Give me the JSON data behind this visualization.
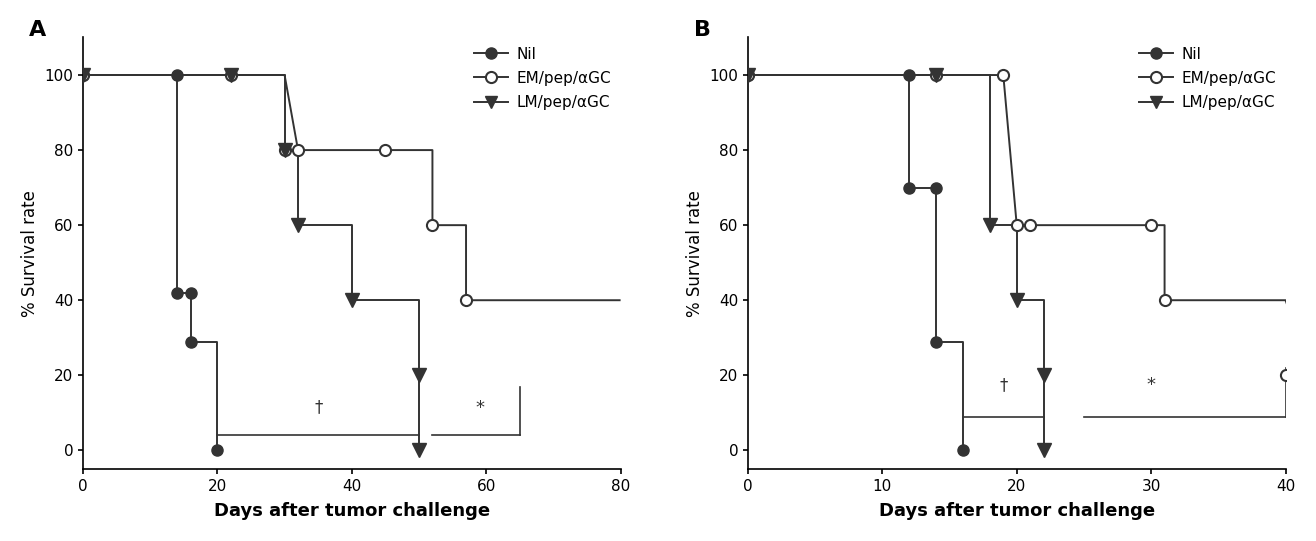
{
  "panel_A": {
    "nil_line": [
      0,
      14,
      14,
      16,
      16,
      20,
      20
    ],
    "nil_y": [
      100,
      100,
      42,
      42,
      29,
      29,
      0
    ],
    "nil_markers": [
      [
        0,
        100
      ],
      [
        14,
        100
      ],
      [
        14,
        42
      ],
      [
        16,
        42
      ],
      [
        16,
        29
      ],
      [
        20,
        0
      ]
    ],
    "em_line": [
      0,
      22,
      22,
      30,
      32,
      45,
      45,
      52,
      52,
      57,
      57,
      80
    ],
    "em_y": [
      100,
      100,
      100,
      100,
      80,
      80,
      80,
      80,
      60,
      60,
      40,
      40
    ],
    "em_markers": [
      [
        0,
        100
      ],
      [
        22,
        100
      ],
      [
        30,
        80
      ],
      [
        32,
        80
      ],
      [
        45,
        80
      ],
      [
        52,
        60
      ],
      [
        57,
        40
      ]
    ],
    "lm_line": [
      0,
      22,
      22,
      30,
      30,
      32,
      32,
      40,
      40,
      50,
      50
    ],
    "lm_y": [
      100,
      100,
      100,
      100,
      80,
      80,
      60,
      60,
      40,
      40,
      20
    ],
    "lm_drop_x": 50,
    "lm_markers": [
      [
        0,
        100
      ],
      [
        22,
        100
      ],
      [
        30,
        80
      ],
      [
        32,
        60
      ],
      [
        40,
        40
      ],
      [
        50,
        20
      ],
      [
        50,
        0
      ]
    ],
    "xlim": [
      0,
      80
    ],
    "xticks": [
      0,
      20,
      40,
      60,
      80
    ],
    "dagger_x": 35,
    "dagger_y": 9,
    "bracket1_x1": 20,
    "bracket1_x2": 50,
    "bracket1_y": 4,
    "star_x": 59,
    "star_y": 9,
    "bracket2_x1": 52,
    "bracket2_x2": 65,
    "bracket2_y": 4,
    "bracket2_top": 17,
    "label": "A"
  },
  "panel_B": {
    "nil_line": [
      0,
      12,
      12,
      14,
      14,
      16,
      16
    ],
    "nil_y": [
      100,
      100,
      70,
      70,
      29,
      29,
      0
    ],
    "nil_markers": [
      [
        0,
        100
      ],
      [
        12,
        100
      ],
      [
        12,
        70
      ],
      [
        14,
        70
      ],
      [
        14,
        29
      ],
      [
        16,
        0
      ]
    ],
    "em_line": [
      0,
      14,
      14,
      19,
      19,
      20,
      21,
      21,
      30,
      30,
      31,
      31,
      40,
      42
    ],
    "em_y": [
      100,
      100,
      100,
      100,
      100,
      60,
      60,
      60,
      60,
      60,
      60,
      40,
      40,
      20
    ],
    "em_markers": [
      [
        0,
        100
      ],
      [
        14,
        100
      ],
      [
        19,
        100
      ],
      [
        20,
        60
      ],
      [
        21,
        60
      ],
      [
        30,
        60
      ],
      [
        31,
        40
      ],
      [
        40,
        20
      ]
    ],
    "em_tail_x": 42,
    "em_tail_y": 20,
    "lm_line": [
      0,
      14,
      14,
      18,
      18,
      20,
      20,
      22,
      22
    ],
    "lm_y": [
      100,
      100,
      100,
      100,
      60,
      60,
      40,
      40,
      20
    ],
    "lm_drop_x": 22,
    "lm_markers": [
      [
        0,
        100
      ],
      [
        14,
        100
      ],
      [
        18,
        60
      ],
      [
        20,
        40
      ],
      [
        22,
        20
      ],
      [
        22,
        0
      ]
    ],
    "xlim": [
      0,
      40
    ],
    "xticks": [
      0,
      10,
      20,
      30,
      40
    ],
    "dagger_x": 19,
    "dagger_y": 15,
    "bracket1_x1": 16,
    "bracket1_x2": 22,
    "bracket1_y": 9,
    "star_x": 30,
    "star_y": 15,
    "bracket2_x1": 25,
    "bracket2_x2": 40,
    "bracket2_y": 9,
    "bracket2_top": 22,
    "label": "B"
  },
  "legend_labels": [
    "Nil",
    "EM/pep/αGC",
    "LM/pep/αGC"
  ],
  "ylabel": "% Survival rate",
  "xlabel": "Days after tumor challenge",
  "ylim": [
    -5,
    110
  ],
  "yticks": [
    0,
    20,
    40,
    60,
    80,
    100
  ],
  "line_color": "#333333",
  "background": "white"
}
